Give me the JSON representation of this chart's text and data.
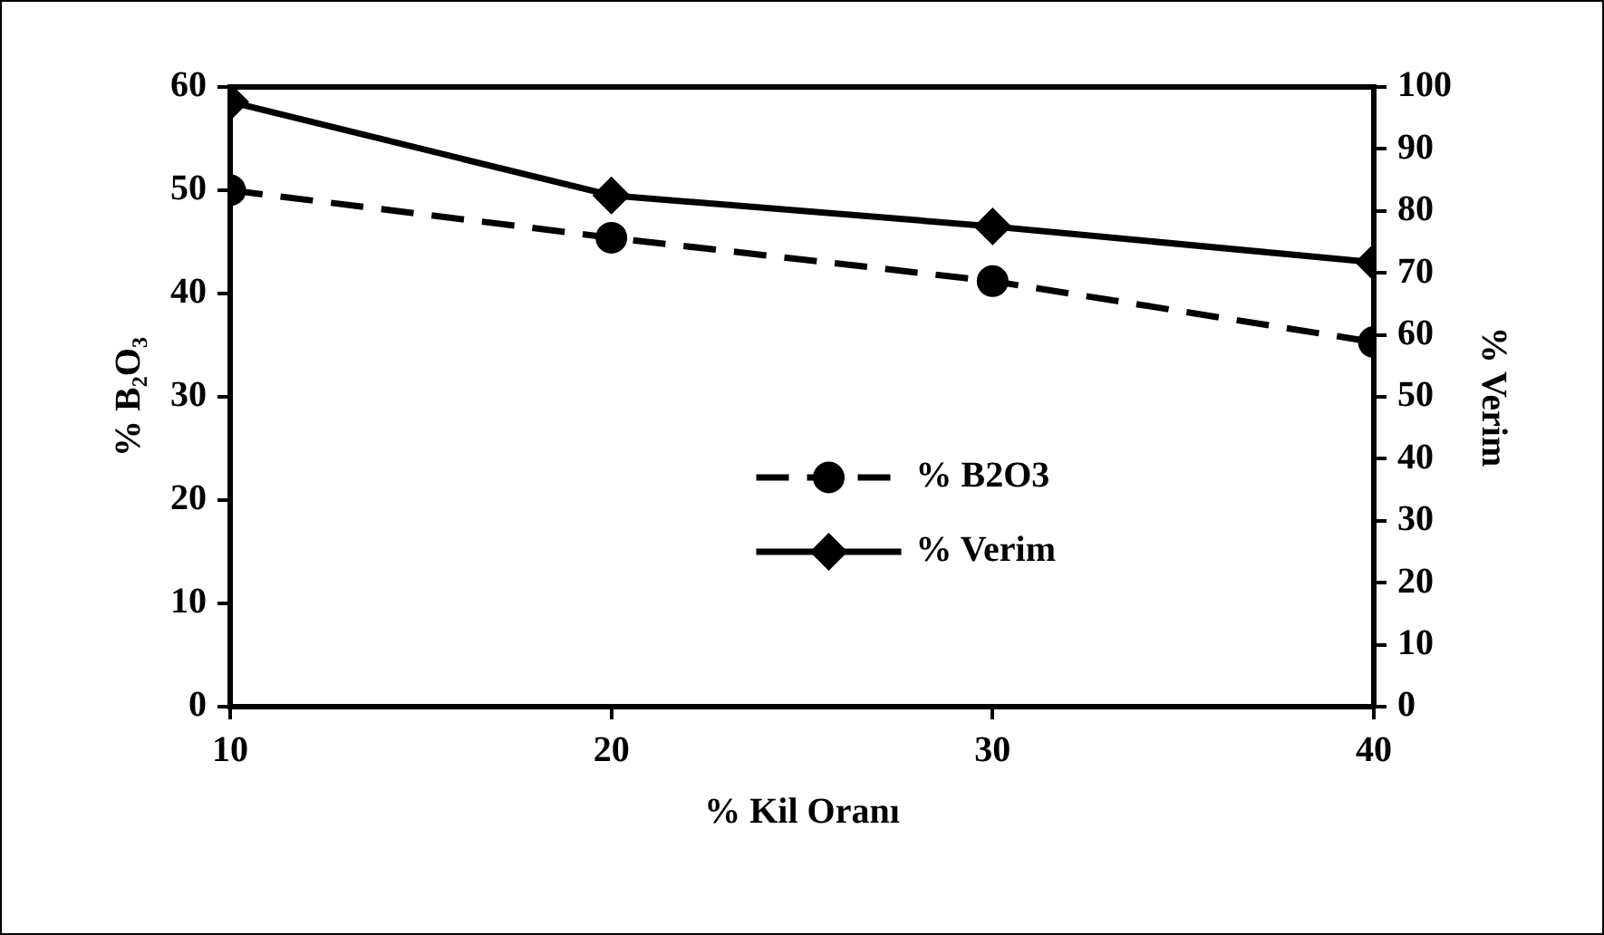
{
  "chart_data": {
    "type": "line",
    "xlabel": "% Kil Oranı",
    "ylabel": "% B₂O₃",
    "y2label": "% Verim",
    "x": [
      10,
      20,
      30,
      40
    ],
    "xlim": [
      10,
      40
    ],
    "xticks": [
      10,
      20,
      30,
      40
    ],
    "ylim": [
      0,
      60
    ],
    "yticks": [
      0,
      10,
      20,
      30,
      40,
      50,
      60
    ],
    "y2lim": [
      0,
      100
    ],
    "y2ticks": [
      0,
      10,
      20,
      30,
      40,
      50,
      60,
      70,
      80,
      90,
      100
    ],
    "grid": false,
    "legend": "bottom",
    "series": [
      {
        "name": "% B2O3",
        "color": "#000000",
        "values": [
          50,
          45.4,
          41.2,
          35.3
        ],
        "marker": "circle",
        "line_style": "dashed"
      },
      {
        "name": "% Verim",
        "color": "#000000",
        "values": [
          97.6,
          82.5,
          77.5,
          71.7
        ],
        "marker": "diamond",
        "line_style": "solid",
        "axis": "y2"
      }
    ]
  }
}
